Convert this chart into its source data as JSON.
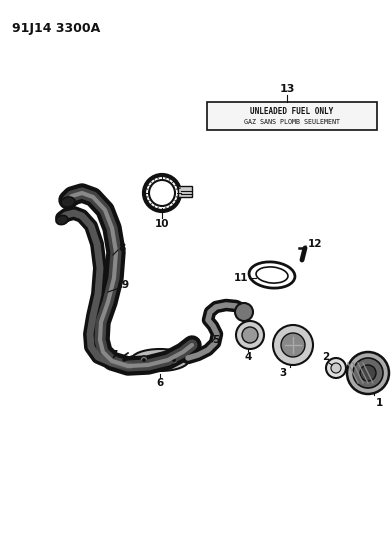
{
  "title": "91J14 3300A",
  "background": "#ffffff",
  "label_box_text_line1": "UNLEADED FUEL ONLY",
  "label_box_text_line2": "GAZ SANS PLOMB SEULEMENT",
  "label_box_num": "13",
  "figsize": [
    3.92,
    5.33
  ],
  "dpi": 100,
  "color_main": "#111111",
  "color_gray": "#888888",
  "color_lgray": "#cccccc"
}
